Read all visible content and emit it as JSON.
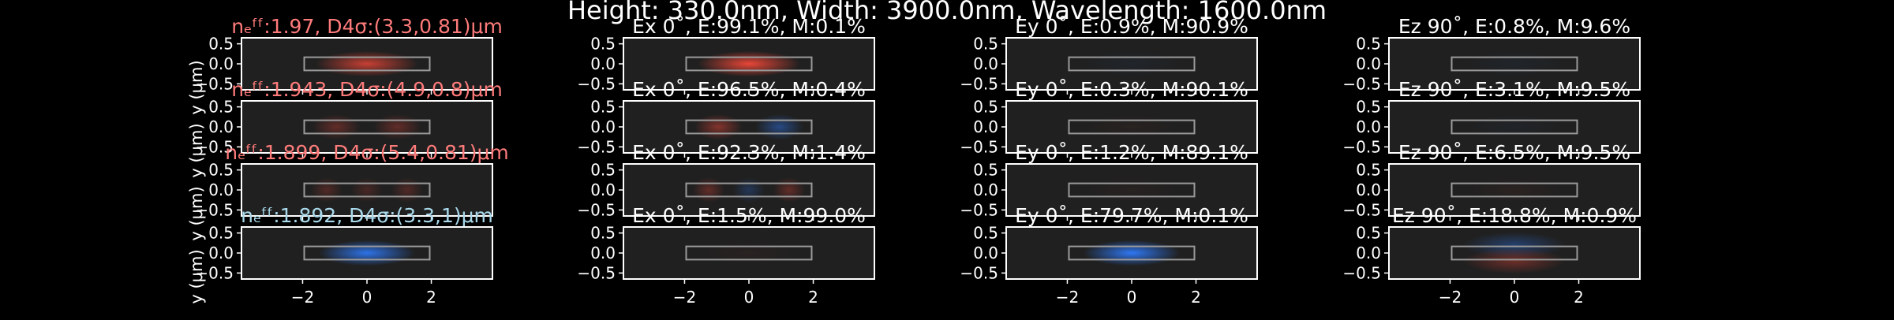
{
  "figure_title": "Height: 330.0nm, Width: 3900.0nm, Wavelength: 1600.0nm",
  "colors": {
    "background": "#000000",
    "panel_bg": "#202020",
    "positive_field": "#ff4a3a",
    "negative_field": "#2f7cff",
    "te_mode_label": "#ff7b7b",
    "tm_mode_label": "#a8d8ea",
    "panel_title": "#ffffff",
    "waveguide_outline": "#9a9a9a"
  },
  "chart_data": {
    "type": "heatmap",
    "description_rows": "4 rows of modes x 4 columns (mode intensity, Ex, Ey, Ez)",
    "xlim": [
      -3.9,
      3.9
    ],
    "ylim": [
      -0.65,
      0.65
    ],
    "xticks": [
      -2,
      0,
      2
    ],
    "yticks": [
      0.5,
      0.0,
      -0.5
    ],
    "xtick_labels": [
      "−2",
      "0",
      "2"
    ],
    "ytick_labels": [
      "0.5",
      "0.0",
      "−0.5"
    ],
    "ylabel": "y (μm)",
    "waveguide": {
      "x": [
        -1.95,
        1.95
      ],
      "y": [
        -0.165,
        0.165
      ]
    },
    "rows": [
      {
        "mode_label": "nₑᶠᶠ:1.97, D4σ:(3.3,0.81)μm",
        "mode_color": "te",
        "panels": [
          {
            "title": "",
            "lobes": [
              {
                "x": 0,
                "sign": 1,
                "w": 1.6,
                "amp": 0.75
              }
            ]
          },
          {
            "title": "Ex 0˚, E:99.1%, M:0.1%",
            "lobes": [
              {
                "x": 0,
                "sign": 1,
                "w": 1.6,
                "amp": 0.9
              }
            ]
          },
          {
            "title": "Ey 0˚, E:0.9%, M:90.9%",
            "lobes": [
              {
                "x": 0,
                "sign": -1,
                "w": 1.6,
                "amp": 0.05
              }
            ]
          },
          {
            "title": "Ez 90˚, E:0.8%, M:9.6%",
            "lobes": [
              {
                "x": 0,
                "sign": -1,
                "w": 1.6,
                "amp": 0.05
              }
            ]
          }
        ]
      },
      {
        "mode_label": "nₑᶠᶠ:1.943, D4σ:(4.9,0.8)μm",
        "mode_color": "te",
        "panels": [
          {
            "title": "",
            "lobes": [
              {
                "x": -0.95,
                "sign": 1,
                "w": 0.75,
                "amp": 0.3
              },
              {
                "x": 0.95,
                "sign": 1,
                "w": 0.75,
                "amp": 0.3
              }
            ]
          },
          {
            "title": "Ex 0˚, E:96.5%, M:0.4%",
            "lobes": [
              {
                "x": -0.95,
                "sign": 1,
                "w": 0.75,
                "amp": 0.45
              },
              {
                "x": 0.95,
                "sign": -1,
                "w": 0.75,
                "amp": 0.45
              }
            ]
          },
          {
            "title": "Ey 0˚, E:0.3%, M:90.1%",
            "lobes": [
              {
                "x": 0,
                "sign": 1,
                "w": 1.5,
                "amp": 0.04
              }
            ]
          },
          {
            "title": "Ez 90˚, E:3.1%, M:9.5%",
            "lobes": [
              {
                "x": 0,
                "sign": -1,
                "w": 1.5,
                "amp": 0.04
              }
            ]
          }
        ]
      },
      {
        "mode_label": "nₑᶠᶠ:1.899, D4σ:(5.4,0.81)μm",
        "mode_color": "te",
        "panels": [
          {
            "title": "",
            "lobes": [
              {
                "x": -1.25,
                "sign": 1,
                "w": 0.5,
                "amp": 0.22
              },
              {
                "x": 0,
                "sign": 1,
                "w": 0.5,
                "amp": 0.18
              },
              {
                "x": 1.25,
                "sign": 1,
                "w": 0.5,
                "amp": 0.22
              }
            ]
          },
          {
            "title": "Ex 0˚, E:92.3%, M:1.4%",
            "lobes": [
              {
                "x": -1.25,
                "sign": 1,
                "w": 0.5,
                "amp": 0.3
              },
              {
                "x": 0,
                "sign": -1,
                "w": 0.5,
                "amp": 0.25
              },
              {
                "x": 1.25,
                "sign": 1,
                "w": 0.5,
                "amp": 0.3
              }
            ]
          },
          {
            "title": "Ey 0˚, E:1.2%, M:89.1%",
            "lobes": [
              {
                "x": 0,
                "sign": 1,
                "w": 1.5,
                "amp": 0.04
              }
            ]
          },
          {
            "title": "Ez 90˚, E:6.5%, M:9.5%",
            "lobes": [
              {
                "x": 0,
                "sign": 1,
                "w": 1.5,
                "amp": 0.05
              }
            ]
          }
        ]
      },
      {
        "mode_label": "nₑᶠᶠ:1.892, D4σ:(3.3,1)μm",
        "mode_color": "tm",
        "panels": [
          {
            "title": "",
            "lobes": [
              {
                "x": 0,
                "sign": -1,
                "w": 1.5,
                "amp": 0.9
              }
            ]
          },
          {
            "title": "Ex 0˚, E:1.5%, M:99.0%",
            "lobes": [
              {
                "x": 0,
                "sign": 1,
                "w": 1.5,
                "amp": 0.04
              }
            ]
          },
          {
            "title": "Ey 0˚, E:79.7%, M:0.1%",
            "lobes": [
              {
                "x": 0,
                "sign": -1,
                "w": 1.5,
                "amp": 0.95
              }
            ]
          },
          {
            "title": "Ez 90˚, E:18.8%, M:0.9%",
            "lobes": [
              {
                "x": 0,
                "sign": -1,
                "w": 1.6,
                "amp": 0.35,
                "y": 0.2
              },
              {
                "x": 0,
                "sign": 1,
                "w": 1.6,
                "amp": 0.35,
                "y": -0.2
              }
            ]
          }
        ]
      }
    ]
  }
}
